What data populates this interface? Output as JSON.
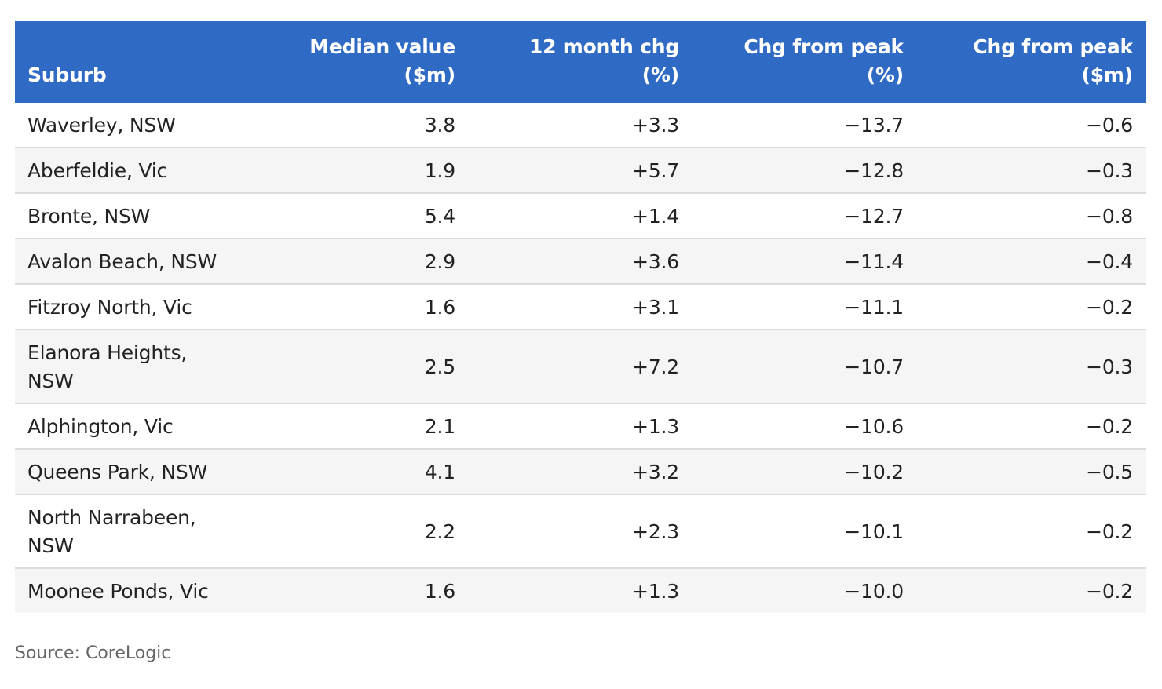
{
  "chart_data": {
    "type": "table",
    "columns": [
      {
        "line1": "Suburb",
        "line2": ""
      },
      {
        "line1": "Median value",
        "line2": "($m)"
      },
      {
        "line1": "12 month chg",
        "line2": "(%)"
      },
      {
        "line1": "Chg from peak",
        "line2": "(%)"
      },
      {
        "line1": "Chg from peak",
        "line2": "($m)"
      }
    ],
    "rows": [
      {
        "suburb": "Waverley, NSW",
        "median": "3.8",
        "chg12": "+3.3",
        "pk_pct": "−13.7",
        "pk_m": "−0.6"
      },
      {
        "suburb": "Aberfeldie, Vic",
        "median": "1.9",
        "chg12": "+5.7",
        "pk_pct": "−12.8",
        "pk_m": "−0.3"
      },
      {
        "suburb": "Bronte, NSW",
        "median": "5.4",
        "chg12": "+1.4",
        "pk_pct": "−12.7",
        "pk_m": "−0.8"
      },
      {
        "suburb": "Avalon Beach, NSW",
        "median": "2.9",
        "chg12": "+3.6",
        "pk_pct": "−11.4",
        "pk_m": "−0.4"
      },
      {
        "suburb": "Fitzroy North, Vic",
        "median": "1.6",
        "chg12": "+3.1",
        "pk_pct": "−11.1",
        "pk_m": "−0.2"
      },
      {
        "suburb": "Elanora Heights, NSW",
        "median": "2.5",
        "chg12": "+7.2",
        "pk_pct": "−10.7",
        "pk_m": "−0.3"
      },
      {
        "suburb": "Alphington, Vic",
        "median": "2.1",
        "chg12": "+1.3",
        "pk_pct": "−10.6",
        "pk_m": "−0.2"
      },
      {
        "suburb": "Queens Park, NSW",
        "median": "4.1",
        "chg12": "+3.2",
        "pk_pct": "−10.2",
        "pk_m": "−0.5"
      },
      {
        "suburb": "North Narrabeen, NSW",
        "median": "2.2",
        "chg12": "+2.3",
        "pk_pct": "−10.1",
        "pk_m": "−0.2"
      },
      {
        "suburb": "Moonee Ponds, Vic",
        "median": "1.6",
        "chg12": "+1.3",
        "pk_pct": "−10.0",
        "pk_m": "−0.2"
      }
    ],
    "source": "Source: CoreLogic",
    "colors": {
      "header_bg": "#2f6bc4",
      "header_text": "#ffffff",
      "row_alt_bg": "#f5f5f5",
      "source_text": "#666666"
    }
  }
}
